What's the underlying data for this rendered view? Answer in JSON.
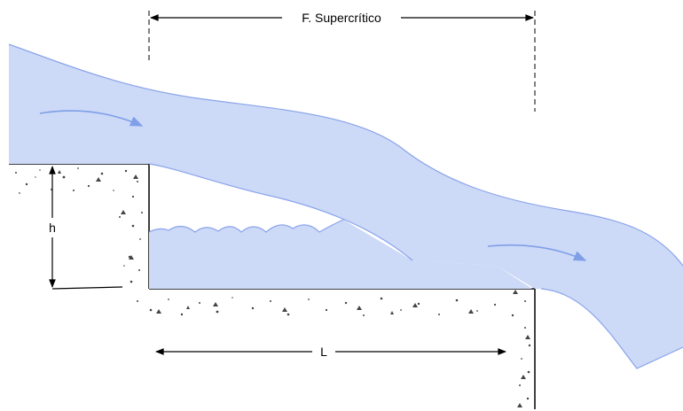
{
  "labels": {
    "supercritical": "F. Supercrítico",
    "height": "h",
    "length": "L"
  },
  "colors": {
    "water": "#ccd9f7",
    "water_edge": "#8aa4ea",
    "flow_arrow": "#7f9fe8",
    "concrete_line": "#000000"
  },
  "icons": {
    "flow_arrow_upstream": "arrow-right-icon",
    "flow_arrow_downstream": "arrow-right-icon"
  }
}
